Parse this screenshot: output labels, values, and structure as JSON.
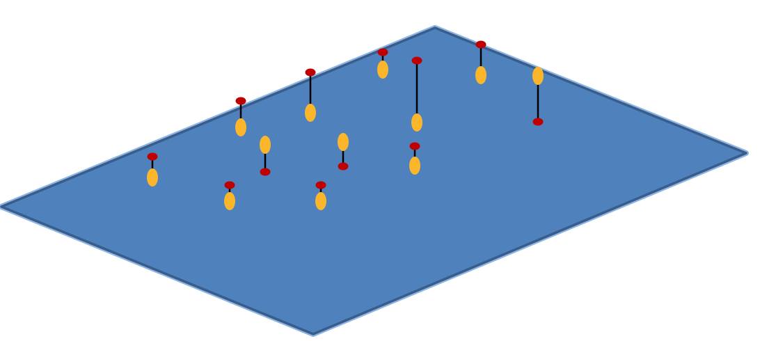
{
  "diagram": {
    "colors": {
      "background": "#ffffff",
      "plane_fill": "#4f81bd",
      "plane_inner_edge": "#385d8a",
      "plane_outer_edge": "#8db4e2",
      "connector": "#000000",
      "upper_marker": "#c00000",
      "lower_marker": "#fbb62b"
    },
    "plane": {
      "shape": "parallelogram",
      "perspective": "isometric"
    },
    "marker_pairs": [
      {
        "id": "p1",
        "top_marker": "red"
      },
      {
        "id": "p2",
        "top_marker": "red"
      },
      {
        "id": "p3",
        "top_marker": "yellow"
      },
      {
        "id": "p4",
        "top_marker": "red"
      },
      {
        "id": "p5",
        "top_marker": "red"
      },
      {
        "id": "p6",
        "top_marker": "red"
      },
      {
        "id": "p7",
        "top_marker": "yellow"
      },
      {
        "id": "p8",
        "top_marker": "red"
      },
      {
        "id": "p9",
        "top_marker": "red"
      },
      {
        "id": "p10",
        "top_marker": "red"
      },
      {
        "id": "p11",
        "top_marker": "red"
      },
      {
        "id": "p12",
        "top_marker": "yellow"
      }
    ]
  }
}
